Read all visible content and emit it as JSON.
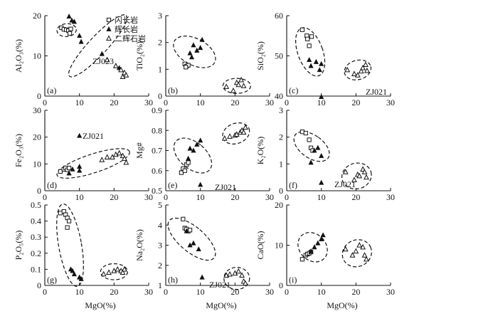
{
  "legend": {
    "items": [
      {
        "label": "闪长岩",
        "marker": "open-square"
      },
      {
        "label": "辉长岩",
        "marker": "filled-triangle"
      },
      {
        "label": "二辉石岩",
        "marker": "open-triangle"
      }
    ]
  },
  "x_axis_label": "MgO(%)",
  "chart_data": [
    {
      "type": "scatter",
      "panel_label": "(a)",
      "ylabel": "Al₂O₃(%)",
      "xlim": [
        0,
        30
      ],
      "ylim": [
        0,
        20
      ],
      "x_ticks": [
        0,
        10,
        20,
        30
      ],
      "y_ticks": [
        0,
        10,
        20
      ],
      "annotation": "ZJ023",
      "series": [
        {
          "name": "闪长岩",
          "marker": "open-square",
          "points": [
            [
              4.8,
              17.0
            ],
            [
              5.5,
              16.6
            ],
            [
              6.2,
              16.5
            ],
            [
              6.8,
              16.3
            ],
            [
              7.5,
              16.7
            ],
            [
              7.2,
              15.6
            ]
          ]
        },
        {
          "name": "辉长岩",
          "marker": "filled-triangle",
          "points": [
            [
              7.0,
              19.8
            ],
            [
              7.8,
              18.8
            ],
            [
              8.5,
              18.5
            ],
            [
              10.0,
              15.0
            ],
            [
              10.5,
              13.5
            ],
            [
              16.5,
              10.5
            ],
            [
              21.5,
              7.0
            ]
          ]
        },
        {
          "name": "二辉石岩",
          "marker": "open-triangle",
          "points": [
            [
              18.0,
              9.0
            ],
            [
              20.5,
              7.5
            ],
            [
              22.0,
              6.5
            ],
            [
              23.0,
              5.8
            ],
            [
              23.5,
              5.2
            ],
            [
              22.5,
              4.8
            ]
          ]
        }
      ]
    },
    {
      "type": "scatter",
      "panel_label": "(b)",
      "ylabel": "TiO₂(%)",
      "xlim": [
        0,
        30
      ],
      "ylim": [
        0,
        3
      ],
      "x_ticks": [
        0,
        10,
        20,
        30
      ],
      "y_ticks": [
        0,
        1,
        2,
        3
      ],
      "annotation": "",
      "series": [
        {
          "name": "闪长岩",
          "marker": "open-square",
          "points": [
            [
              5.5,
              1.2
            ],
            [
              6.0,
              1.12
            ],
            [
              6.5,
              1.15
            ],
            [
              5.8,
              1.08
            ]
          ]
        },
        {
          "name": "辉长岩",
          "marker": "filled-triangle",
          "points": [
            [
              7.0,
              1.6
            ],
            [
              7.5,
              1.45
            ],
            [
              8.0,
              1.9
            ],
            [
              9.0,
              1.7
            ],
            [
              10.0,
              1.8
            ],
            [
              10.5,
              2.1
            ]
          ]
        },
        {
          "name": "二辉石岩",
          "marker": "open-triangle",
          "points": [
            [
              17.5,
              0.35
            ],
            [
              19.5,
              0.2
            ],
            [
              20.5,
              0.5
            ],
            [
              21.0,
              0.42
            ],
            [
              22.5,
              0.38
            ],
            [
              21.8,
              0.6
            ]
          ]
        }
      ]
    },
    {
      "type": "scatter",
      "panel_label": "(c)",
      "ylabel": "SiO₂(%)",
      "xlim": [
        0,
        30
      ],
      "ylim": [
        40,
        60
      ],
      "x_ticks": [
        0,
        10,
        20,
        30
      ],
      "y_ticks": [
        40,
        50,
        60
      ],
      "annotation": "ZJ021",
      "series": [
        {
          "name": "闪长岩",
          "marker": "open-square",
          "points": [
            [
              4.5,
              56.5
            ],
            [
              5.8,
              55.0
            ],
            [
              6.0,
              54.2
            ],
            [
              6.5,
              52.5
            ],
            [
              7.2,
              54.8
            ]
          ]
        },
        {
          "name": "辉长岩",
          "marker": "filled-triangle",
          "points": [
            [
              6.5,
              49.0
            ],
            [
              7.0,
              47.5
            ],
            [
              8.5,
              48.5
            ],
            [
              9.5,
              46.5
            ],
            [
              10.0,
              48.0
            ],
            [
              10.0,
              39.8
            ]
          ]
        },
        {
          "name": "二辉石岩",
          "marker": "open-triangle",
          "points": [
            [
              17.5,
              46.5
            ],
            [
              19.5,
              45.5
            ],
            [
              20.5,
              45.2
            ],
            [
              21.5,
              46.2
            ],
            [
              22.0,
              47.0
            ],
            [
              22.8,
              47.8
            ],
            [
              23.2,
              46.3
            ]
          ]
        }
      ]
    },
    {
      "type": "scatter",
      "panel_label": "(d)",
      "ylabel": "Fe₂O₃(%)",
      "xlim": [
        0,
        30
      ],
      "ylim": [
        0,
        30
      ],
      "x_ticks": [
        0,
        10,
        20,
        30
      ],
      "y_ticks": [
        0,
        10,
        20,
        30
      ],
      "annotation": "ZJ021",
      "series": [
        {
          "name": "闪长岩",
          "marker": "open-square",
          "points": [
            [
              4.5,
              7.2
            ],
            [
              5.5,
              8.0
            ],
            [
              6.0,
              8.5
            ],
            [
              6.5,
              7.8
            ],
            [
              7.0,
              8.5
            ]
          ]
        },
        {
          "name": "辉长岩",
          "marker": "filled-triangle",
          "points": [
            [
              7.0,
              6.5
            ],
            [
              8.0,
              8.0
            ],
            [
              10.0,
              9.0
            ],
            [
              10.0,
              7.5
            ],
            [
              10.0,
              20.5
            ]
          ]
        },
        {
          "name": "二辉石岩",
          "marker": "open-triangle",
          "points": [
            [
              16.5,
              11.5
            ],
            [
              18.0,
              12.5
            ],
            [
              19.5,
              12.5
            ],
            [
              20.5,
              13.5
            ],
            [
              21.5,
              14.0
            ],
            [
              22.5,
              13.0
            ],
            [
              23.0,
              12.0
            ],
            [
              23.5,
              10.5
            ]
          ]
        }
      ]
    },
    {
      "type": "scatter",
      "panel_label": "(e)",
      "ylabel": "Mg#",
      "xlim": [
        0,
        30
      ],
      "ylim": [
        0.5,
        0.9
      ],
      "x_ticks": [
        0,
        10,
        20,
        30
      ],
      "y_ticks": [
        0.5,
        0.6,
        0.7,
        0.8,
        0.9
      ],
      "annotation": "ZJ021",
      "series": [
        {
          "name": "闪长岩",
          "marker": "open-square",
          "points": [
            [
              4.5,
              0.59
            ],
            [
              5.0,
              0.61
            ],
            [
              5.5,
              0.6
            ],
            [
              6.0,
              0.63
            ],
            [
              6.5,
              0.64
            ]
          ]
        },
        {
          "name": "辉长岩",
          "marker": "filled-triangle",
          "points": [
            [
              6.5,
              0.66
            ],
            [
              7.0,
              0.71
            ],
            [
              8.0,
              0.7
            ],
            [
              9.0,
              0.73
            ],
            [
              10.0,
              0.75
            ],
            [
              10.0,
              0.53
            ]
          ]
        },
        {
          "name": "二辉石岩",
          "marker": "open-triangle",
          "points": [
            [
              17.0,
              0.76
            ],
            [
              18.5,
              0.77
            ],
            [
              20.0,
              0.775
            ],
            [
              20.5,
              0.78
            ],
            [
              21.5,
              0.79
            ],
            [
              22.0,
              0.8
            ],
            [
              23.0,
              0.815
            ],
            [
              22.5,
              0.79
            ]
          ]
        }
      ]
    },
    {
      "type": "scatter",
      "panel_label": "(f)",
      "ylabel": "K₂O(%)",
      "xlim": [
        0,
        30
      ],
      "ylim": [
        0,
        3
      ],
      "x_ticks": [
        0,
        10,
        20,
        30
      ],
      "y_ticks": [
        0,
        1,
        2,
        3
      ],
      "annotation": "ZJ021",
      "series": [
        {
          "name": "闪长岩",
          "marker": "open-square",
          "points": [
            [
              4.5,
              2.2
            ],
            [
              5.5,
              2.15
            ],
            [
              6.5,
              1.9
            ],
            [
              7.0,
              1.6
            ],
            [
              7.5,
              1.5
            ]
          ]
        },
        {
          "name": "辉长岩",
          "marker": "filled-triangle",
          "points": [
            [
              7.0,
              1.05
            ],
            [
              8.0,
              1.5
            ],
            [
              9.0,
              1.6
            ],
            [
              10.0,
              1.3
            ],
            [
              10.0,
              0.3
            ]
          ]
        },
        {
          "name": "二辉石岩",
          "marker": "open-triangle",
          "points": [
            [
              17.0,
              0.7
            ],
            [
              19.5,
              0.4
            ],
            [
              20.5,
              0.6
            ],
            [
              21.0,
              0.55
            ],
            [
              22.0,
              0.8
            ],
            [
              22.5,
              0.7
            ],
            [
              23.0,
              0.5
            ]
          ]
        }
      ]
    },
    {
      "type": "scatter",
      "panel_label": "(g)",
      "ylabel": "P₂O₅(%)",
      "xlim": [
        0,
        30
      ],
      "ylim": [
        0,
        0.5
      ],
      "x_ticks": [
        0,
        10,
        20,
        30
      ],
      "y_ticks": [
        0,
        0.1,
        0.2,
        0.3,
        0.4,
        0.5
      ],
      "annotation": "",
      "series": [
        {
          "name": "闪长岩",
          "marker": "open-square",
          "points": [
            [
              4.5,
              0.45
            ],
            [
              5.5,
              0.46
            ],
            [
              6.0,
              0.44
            ],
            [
              6.5,
              0.42
            ],
            [
              7.0,
              0.4
            ],
            [
              6.5,
              0.36
            ]
          ]
        },
        {
          "name": "辉长岩",
          "marker": "filled-triangle",
          "points": [
            [
              7.5,
              0.1
            ],
            [
              8.0,
              0.09
            ],
            [
              8.5,
              0.07
            ],
            [
              10.0,
              0.05
            ],
            [
              10.5,
              0.04
            ]
          ]
        },
        {
          "name": "二辉石岩",
          "marker": "open-triangle",
          "points": [
            [
              17.0,
              0.07
            ],
            [
              18.5,
              0.08
            ],
            [
              20.0,
              0.09
            ],
            [
              21.0,
              0.1
            ],
            [
              22.0,
              0.09
            ],
            [
              22.5,
              0.08
            ],
            [
              23.0,
              0.1
            ]
          ]
        }
      ]
    },
    {
      "type": "scatter",
      "panel_label": "(h)",
      "ylabel": "Na₂O(%)",
      "xlim": [
        0,
        30
      ],
      "ylim": [
        1,
        5
      ],
      "x_ticks": [
        0,
        10,
        20,
        30
      ],
      "y_ticks": [
        1,
        2,
        3,
        4,
        5
      ],
      "annotation": "ZJ021",
      "series": [
        {
          "name": "闪长岩",
          "marker": "open-square",
          "points": [
            [
              5.0,
              4.3
            ],
            [
              5.5,
              3.85
            ],
            [
              6.0,
              3.8
            ],
            [
              6.5,
              3.7
            ],
            [
              7.0,
              3.75
            ]
          ]
        },
        {
          "name": "辉长岩",
          "marker": "filled-triangle",
          "points": [
            [
              6.0,
              3.7
            ],
            [
              7.0,
              3.0
            ],
            [
              8.0,
              3.1
            ],
            [
              9.5,
              2.8
            ],
            [
              10.5,
              1.4
            ]
          ]
        },
        {
          "name": "二辉石岩",
          "marker": "open-triangle",
          "points": [
            [
              17.5,
              1.5
            ],
            [
              18.5,
              1.55
            ],
            [
              20.0,
              1.6
            ],
            [
              21.0,
              1.7
            ],
            [
              22.0,
              1.5
            ],
            [
              22.5,
              1.2
            ],
            [
              23.0,
              1.1
            ]
          ]
        }
      ]
    },
    {
      "type": "scatter",
      "panel_label": "(i)",
      "ylabel": "CaO(%)",
      "xlim": [
        0,
        30
      ],
      "ylim": [
        0,
        20
      ],
      "x_ticks": [
        0,
        10,
        20,
        30
      ],
      "y_ticks": [
        0,
        10,
        20
      ],
      "annotation": "",
      "series": [
        {
          "name": "闪长岩",
          "marker": "open-square",
          "points": [
            [
              4.5,
              6.5
            ],
            [
              5.5,
              7.5
            ],
            [
              6.0,
              7.8
            ],
            [
              6.5,
              8.0
            ],
            [
              7.0,
              8.3
            ]
          ]
        },
        {
          "name": "辉长岩",
          "marker": "filled-triangle",
          "points": [
            [
              7.0,
              8.5
            ],
            [
              8.0,
              9.5
            ],
            [
              9.0,
              10.5
            ],
            [
              10.0,
              11.5
            ],
            [
              10.5,
              12.5
            ]
          ]
        },
        {
          "name": "二辉石岩",
          "marker": "open-triangle",
          "points": [
            [
              17.0,
              9.0
            ],
            [
              19.0,
              7.5
            ],
            [
              20.0,
              8.5
            ],
            [
              21.0,
              10.0
            ],
            [
              22.0,
              9.5
            ],
            [
              22.5,
              7.5
            ],
            [
              23.0,
              6.5
            ]
          ]
        }
      ]
    }
  ]
}
